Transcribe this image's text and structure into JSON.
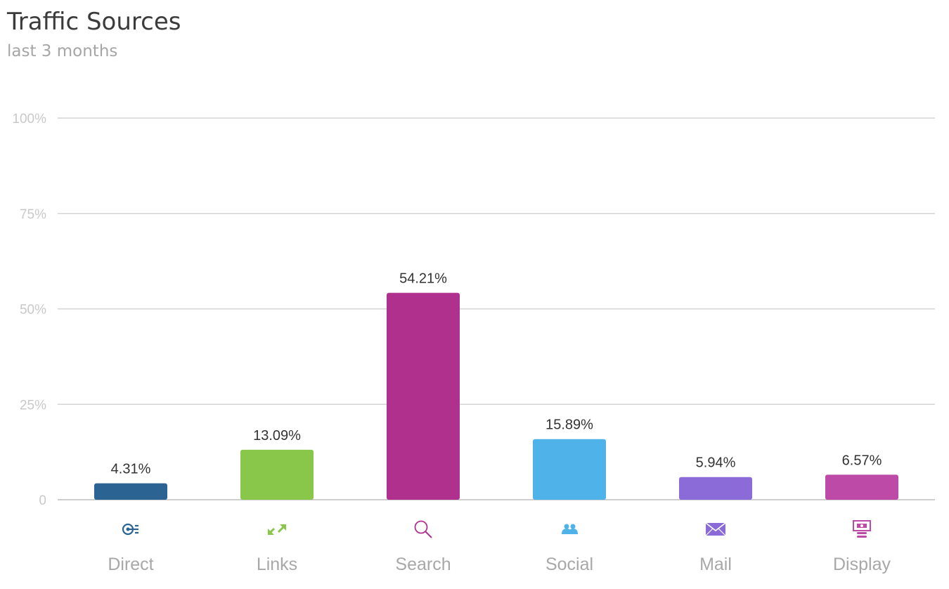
{
  "header": {
    "title": "Traffic Sources",
    "subtitle": "last 3 months"
  },
  "chart_data": {
    "type": "bar",
    "title": "Traffic Sources",
    "subtitle": "last 3 months",
    "categories": [
      "Direct",
      "Links",
      "Search",
      "Social",
      "Mail",
      "Display"
    ],
    "values": [
      4.31,
      13.09,
      54.21,
      15.89,
      5.94,
      6.57
    ],
    "data_labels": [
      "4.31%",
      "13.09%",
      "54.21%",
      "15.89%",
      "5.94%",
      "6.57%"
    ],
    "colors": [
      "#2b6493",
      "#88c74a",
      "#b0308e",
      "#4fb2e8",
      "#8b6bd8",
      "#bc4aa6"
    ],
    "icons": [
      "direct-icon",
      "links-icon",
      "search-icon",
      "social-icon",
      "mail-icon",
      "display-icon"
    ],
    "ylim": [
      0,
      100
    ],
    "yticks": [
      0,
      25,
      50,
      75,
      100
    ],
    "ytick_labels": [
      "0",
      "25%",
      "50%",
      "75%",
      "100%"
    ],
    "xlabel": "",
    "ylabel": "",
    "grid": true,
    "legend": "none"
  }
}
